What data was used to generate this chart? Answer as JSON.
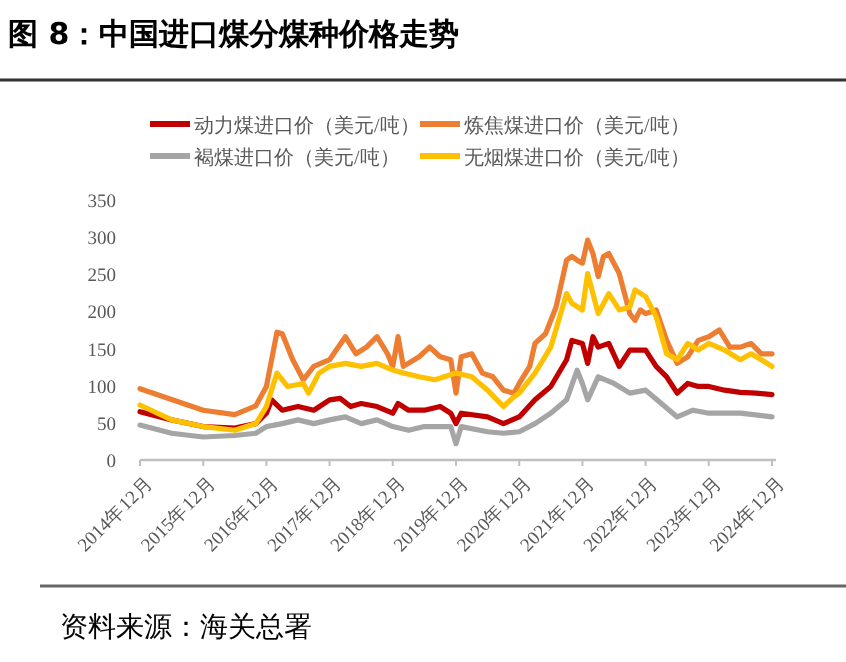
{
  "chart_data": {
    "type": "line",
    "title": "图 8：中国进口煤分煤种价格走势",
    "annotations": [
      "资料来源：海关总署"
    ],
    "legend": "top",
    "grid": false,
    "xlim": [
      "2014-12",
      "2024-12"
    ],
    "ylim": [
      0,
      350
    ],
    "yticks": [
      0,
      50,
      100,
      150,
      200,
      250,
      300,
      350
    ],
    "xticks": [
      {
        "value": "2014-12",
        "label": "2014年12月"
      },
      {
        "value": "2015-12",
        "label": "2015年12月"
      },
      {
        "value": "2016-12",
        "label": "2016年12月"
      },
      {
        "value": "2017-12",
        "label": "2017年12月"
      },
      {
        "value": "2018-12",
        "label": "2018年12月"
      },
      {
        "value": "2019-12",
        "label": "2019年12月"
      },
      {
        "value": "2020-12",
        "label": "2020年12月"
      },
      {
        "value": "2021-12",
        "label": "2021年12月"
      },
      {
        "value": "2022-12",
        "label": "2022年12月"
      },
      {
        "value": "2023-12",
        "label": "2023年12月"
      },
      {
        "value": "2024-12",
        "label": "2024年12月"
      }
    ],
    "series": [
      {
        "name": "动力煤进口价（美元/吨）",
        "color": "#c00000",
        "x": [
          "2014-12",
          "2015-06",
          "2015-12",
          "2016-06",
          "2016-10",
          "2016-12",
          "2017-01",
          "2017-03",
          "2017-06",
          "2017-09",
          "2017-12",
          "2018-02",
          "2018-04",
          "2018-06",
          "2018-09",
          "2018-12",
          "2019-01",
          "2019-03",
          "2019-06",
          "2019-09",
          "2019-11",
          "2019-12",
          "2020-01",
          "2020-06",
          "2020-09",
          "2020-12",
          "2021-03",
          "2021-06",
          "2021-09",
          "2021-10",
          "2021-12",
          "2022-01",
          "2022-02",
          "2022-03",
          "2022-05",
          "2022-07",
          "2022-09",
          "2022-12",
          "2023-02",
          "2023-04",
          "2023-06",
          "2023-08",
          "2023-10",
          "2023-12",
          "2024-03",
          "2024-06",
          "2024-09",
          "2024-12"
        ],
        "values": [
          65,
          54,
          45,
          43,
          49,
          63,
          81,
          67,
          72,
          67,
          81,
          83,
          72,
          76,
          72,
          63,
          76,
          67,
          67,
          72,
          63,
          49,
          63,
          58,
          49,
          58,
          81,
          99,
          135,
          161,
          157,
          130,
          166,
          152,
          157,
          126,
          148,
          148,
          126,
          112,
          90,
          103,
          99,
          99,
          94,
          91,
          90,
          88
        ]
      },
      {
        "name": "炼焦煤进口价（美元/吨）",
        "color": "#ed7d31",
        "x": [
          "2014-12",
          "2015-12",
          "2016-06",
          "2016-10",
          "2016-12",
          "2017-02",
          "2017-03",
          "2017-05",
          "2017-07",
          "2017-09",
          "2017-12",
          "2018-03",
          "2018-05",
          "2018-07",
          "2018-09",
          "2018-11",
          "2018-12",
          "2019-01",
          "2019-02",
          "2019-05",
          "2019-07",
          "2019-09",
          "2019-11",
          "2019-12",
          "2020-01",
          "2020-03",
          "2020-05",
          "2020-07",
          "2020-09",
          "2020-11",
          "2020-12",
          "2021-02",
          "2021-03",
          "2021-05",
          "2021-07",
          "2021-09",
          "2021-10",
          "2021-11",
          "2021-12",
          "2022-01",
          "2022-02",
          "2022-03",
          "2022-04",
          "2022-05",
          "2022-07",
          "2022-09",
          "2022-10",
          "2022-11",
          "2022-12",
          "2023-02",
          "2023-04",
          "2023-06",
          "2023-08",
          "2023-10",
          "2023-12",
          "2024-02",
          "2024-04",
          "2024-06",
          "2024-08",
          "2024-10",
          "2024-12"
        ],
        "values": [
          96,
          67,
          61,
          73,
          99,
          172,
          170,
          135,
          108,
          126,
          135,
          166,
          143,
          152,
          166,
          143,
          126,
          166,
          126,
          139,
          152,
          139,
          135,
          90,
          139,
          143,
          117,
          112,
          94,
          90,
          103,
          126,
          157,
          170,
          206,
          269,
          274,
          269,
          265,
          296,
          278,
          247,
          274,
          278,
          251,
          197,
          188,
          202,
          197,
          202,
          161,
          130,
          139,
          161,
          166,
          175,
          152,
          152,
          157,
          143,
          143
        ]
      },
      {
        "name": "褐煤进口价（美元/吨）",
        "color": "#a5a5a5",
        "x": [
          "2014-12",
          "2015-06",
          "2015-12",
          "2016-06",
          "2016-10",
          "2016-12",
          "2017-03",
          "2017-06",
          "2017-09",
          "2017-12",
          "2018-03",
          "2018-06",
          "2018-09",
          "2018-12",
          "2019-03",
          "2019-06",
          "2019-09",
          "2019-11",
          "2019-12",
          "2020-01",
          "2020-06",
          "2020-09",
          "2020-12",
          "2021-03",
          "2021-06",
          "2021-09",
          "2021-11",
          "2021-12",
          "2022-01",
          "2022-03",
          "2022-06",
          "2022-09",
          "2022-12",
          "2023-03",
          "2023-06",
          "2023-09",
          "2023-12",
          "2024-06",
          "2024-12"
        ],
        "values": [
          47,
          36,
          31,
          33,
          36,
          45,
          49,
          54,
          49,
          54,
          58,
          49,
          54,
          45,
          40,
          45,
          45,
          45,
          22,
          45,
          38,
          36,
          38,
          49,
          63,
          81,
          121,
          103,
          81,
          112,
          103,
          90,
          94,
          76,
          58,
          67,
          63,
          63,
          58
        ]
      },
      {
        "name": "无烟煤进口价（美元/吨）",
        "color": "#ffc000",
        "x": [
          "2014-12",
          "2015-06",
          "2015-12",
          "2016-06",
          "2016-10",
          "2016-12",
          "2017-02",
          "2017-04",
          "2017-07",
          "2017-08",
          "2017-10",
          "2017-12",
          "2018-03",
          "2018-06",
          "2018-09",
          "2018-12",
          "2019-02",
          "2019-05",
          "2019-08",
          "2019-12",
          "2020-03",
          "2020-06",
          "2020-09",
          "2020-11",
          "2020-12",
          "2021-03",
          "2021-06",
          "2021-09",
          "2021-10",
          "2021-12",
          "2022-01",
          "2022-02",
          "2022-03",
          "2022-05",
          "2022-07",
          "2022-09",
          "2022-10",
          "2022-12",
          "2023-02",
          "2023-04",
          "2023-06",
          "2023-08",
          "2023-10",
          "2023-12",
          "2024-03",
          "2024-06",
          "2024-08",
          "2024-10",
          "2024-12"
        ],
        "values": [
          74,
          54,
          45,
          40,
          49,
          72,
          117,
          99,
          103,
          90,
          117,
          126,
          130,
          126,
          130,
          121,
          117,
          112,
          108,
          117,
          112,
          94,
          72,
          85,
          90,
          117,
          152,
          224,
          211,
          202,
          251,
          224,
          197,
          224,
          202,
          206,
          229,
          220,
          193,
          143,
          135,
          157,
          148,
          157,
          148,
          135,
          143,
          135,
          126
        ]
      }
    ]
  }
}
